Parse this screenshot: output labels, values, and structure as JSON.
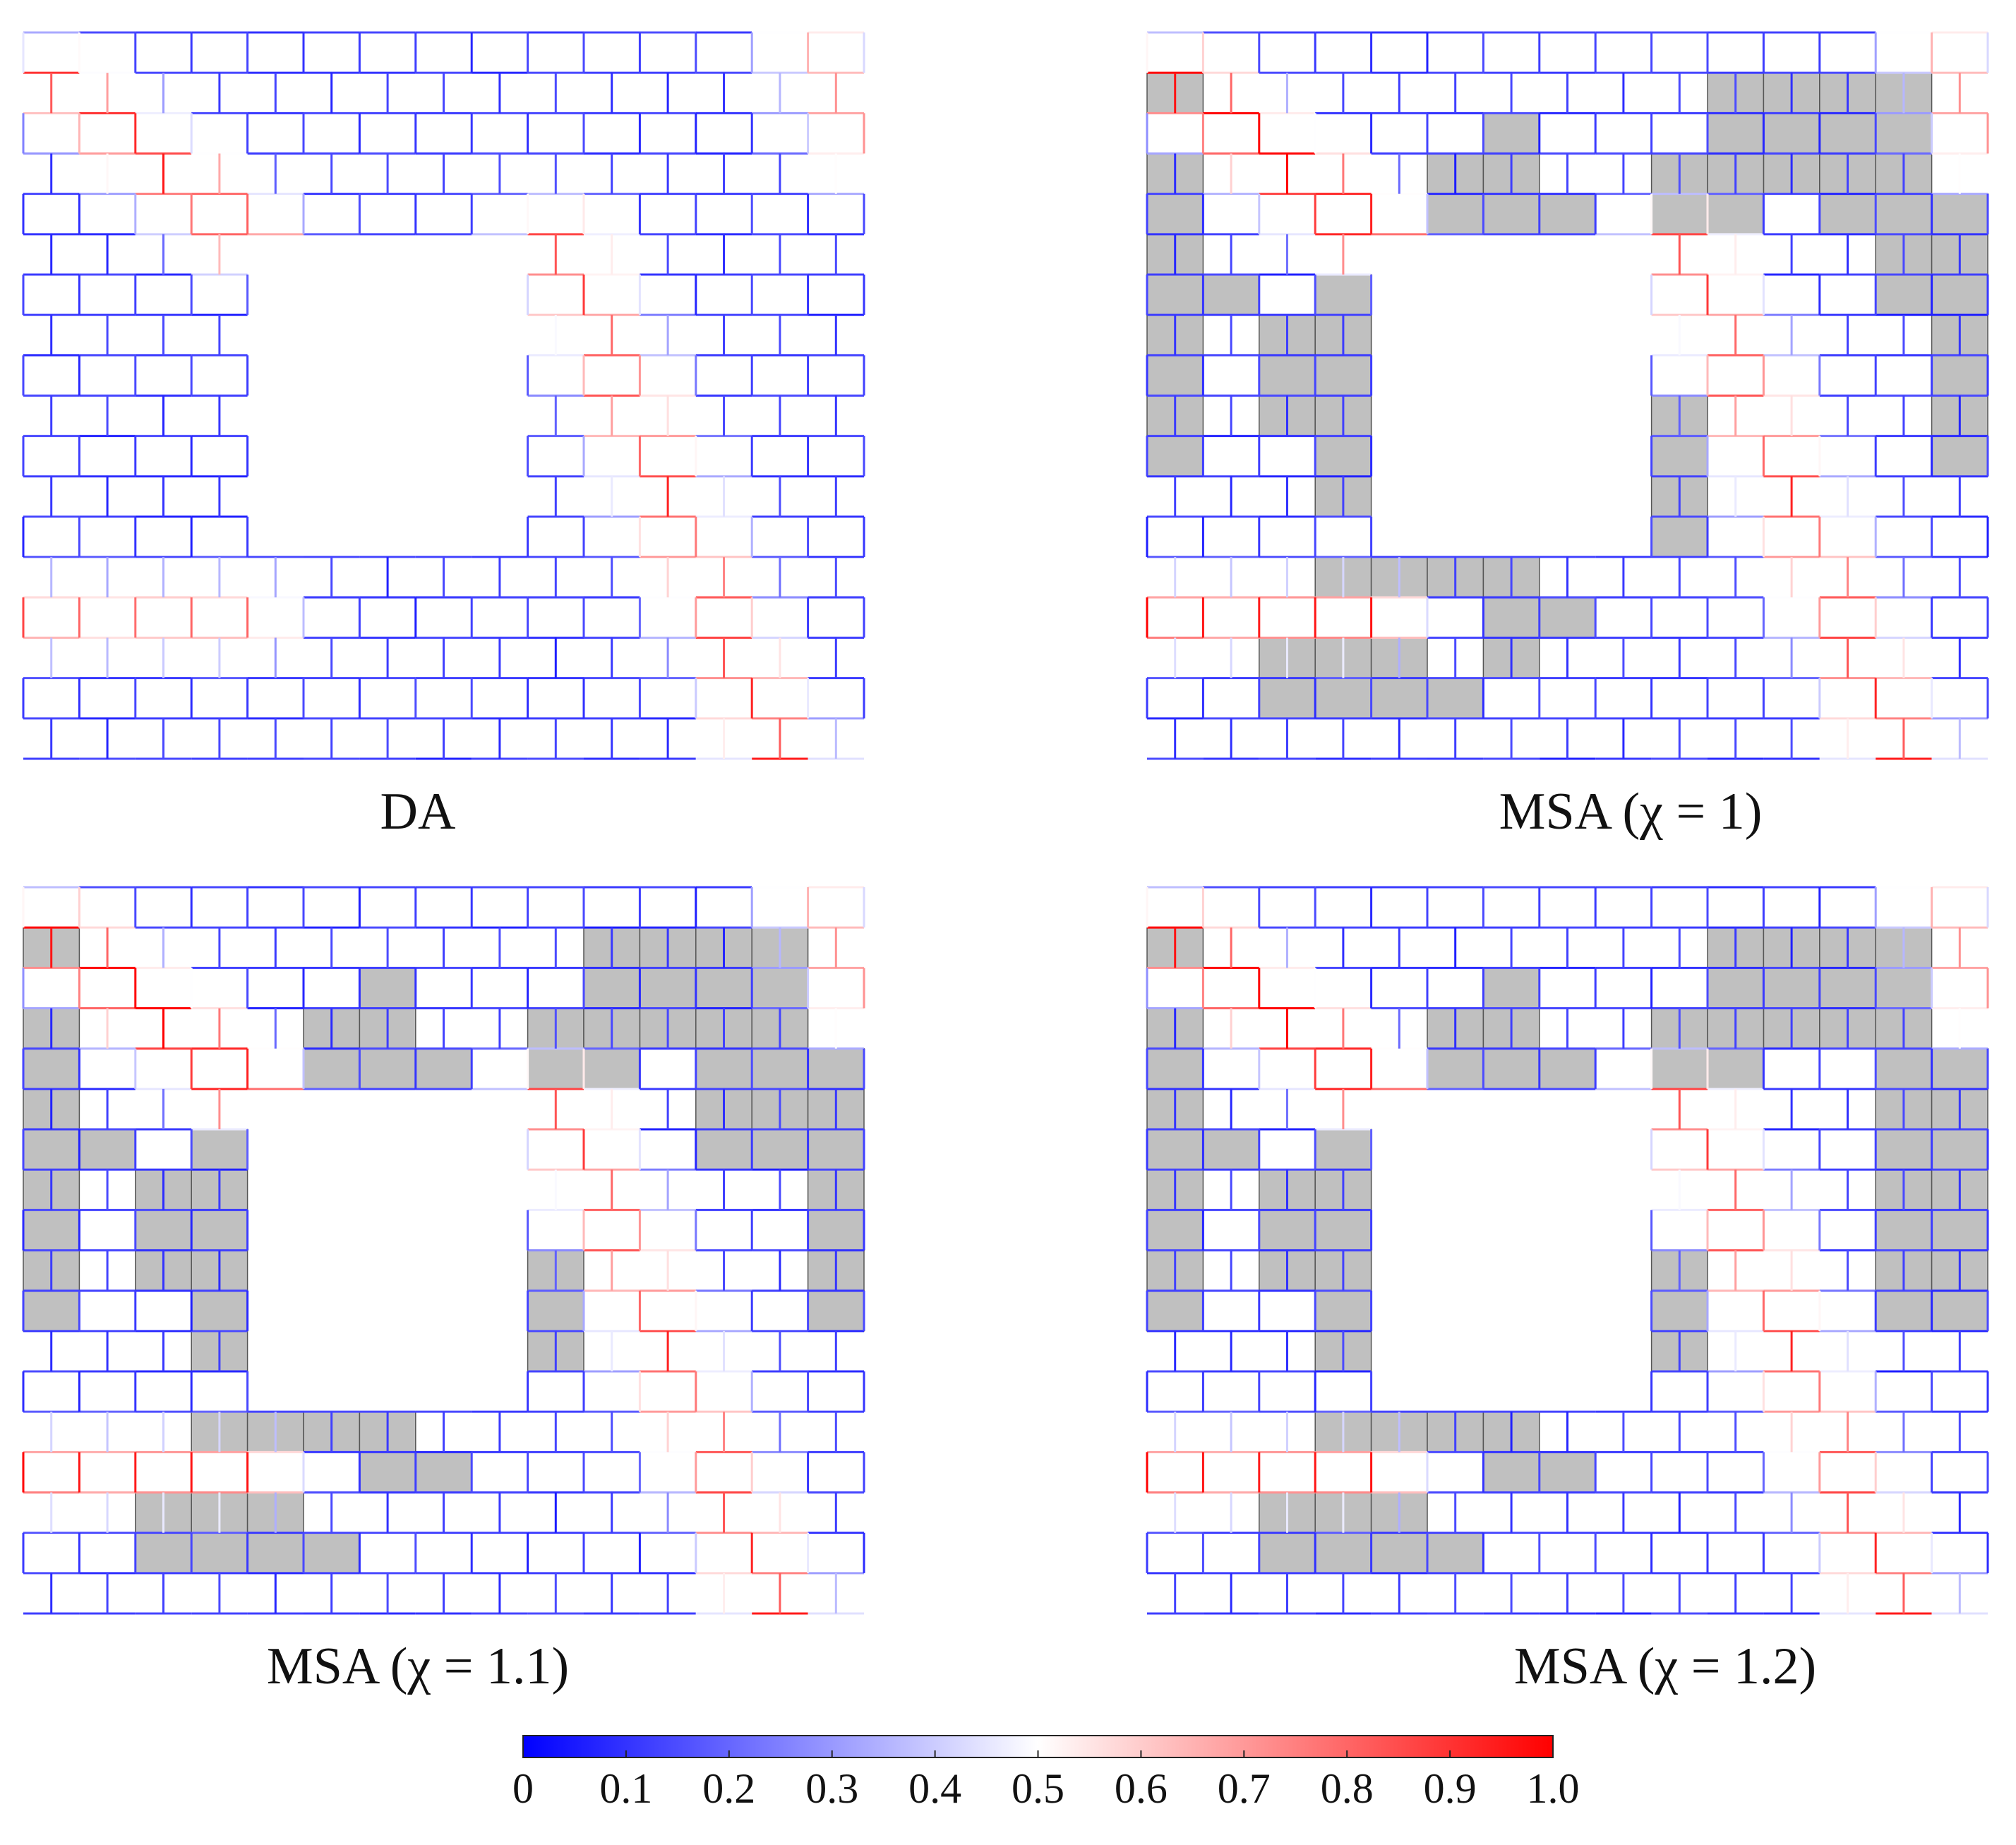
{
  "panels": [
    {
      "label": "DA"
    },
    {
      "label": "MSA (χ = 1)"
    },
    {
      "label": "MSA (χ = 1.1)"
    },
    {
      "label": "MSA (χ = 1.2)"
    }
  ],
  "colorbar": {
    "lim": [
      0,
      1
    ],
    "colors": [
      "#0000ff",
      "#ffffff",
      "#ff0000"
    ],
    "ticks": [
      0,
      0.1,
      0.2,
      0.3,
      0.4,
      0.5,
      0.6,
      0.7,
      0.8,
      0.9,
      {
        "value": 1,
        "label": "1.0"
      }
    ]
  }
}
